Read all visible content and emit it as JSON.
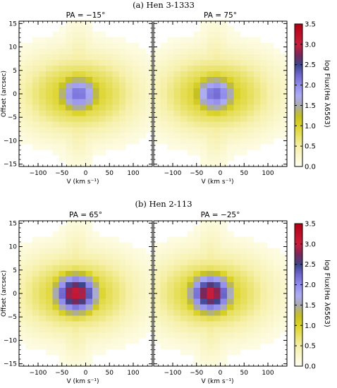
{
  "chart_data": [
    {
      "type": "heatmap",
      "panel_title": "(a) Hen 3-1333",
      "subplots": [
        {
          "title": "PA = −15°",
          "center": -15,
          "peak": 2.2
        },
        {
          "title": "PA = 75°",
          "center": -10,
          "peak": 2.25
        }
      ],
      "xlabel": "V (km s⁻¹)",
      "ylabel": "Offset (arcsec)",
      "xlim": [
        -140,
        140
      ],
      "ylim": [
        -15.5,
        15.5
      ],
      "xticks": [
        -100,
        -50,
        0,
        50,
        100
      ],
      "yticks": [
        -15,
        -10,
        -5,
        0,
        5,
        10,
        15
      ],
      "colorbar": {
        "label": "log Flux(Hα λ6563)",
        "range": [
          0.0,
          3.5
        ],
        "ticks": [
          "0.0",
          "0.5",
          "1.0",
          "1.5",
          "2.0",
          "2.5",
          "3.0",
          "3.5"
        ]
      }
    },
    {
      "type": "heatmap",
      "panel_title": "(b) Hen 2-113",
      "subplots": [
        {
          "title": "PA = 65°",
          "center": -20,
          "peak": 3.15
        },
        {
          "title": "PA = −25°",
          "center": -20,
          "peak": 3.05
        }
      ],
      "xlabel": "V (km s⁻¹)",
      "ylabel": "Offset (arcsec)",
      "xlim": [
        -140,
        140
      ],
      "ylim": [
        -15.5,
        15.5
      ],
      "xticks": [
        -100,
        -50,
        0,
        50,
        100
      ],
      "yticks": [
        -15,
        -10,
        -5,
        0,
        5,
        10,
        15
      ],
      "colorbar": {
        "label": "log Flux(Hα λ6563)",
        "range": [
          0.0,
          3.5
        ],
        "ticks": [
          "0.0",
          "0.5",
          "1.0",
          "1.5",
          "2.0",
          "2.5",
          "3.0",
          "3.5"
        ]
      }
    }
  ]
}
